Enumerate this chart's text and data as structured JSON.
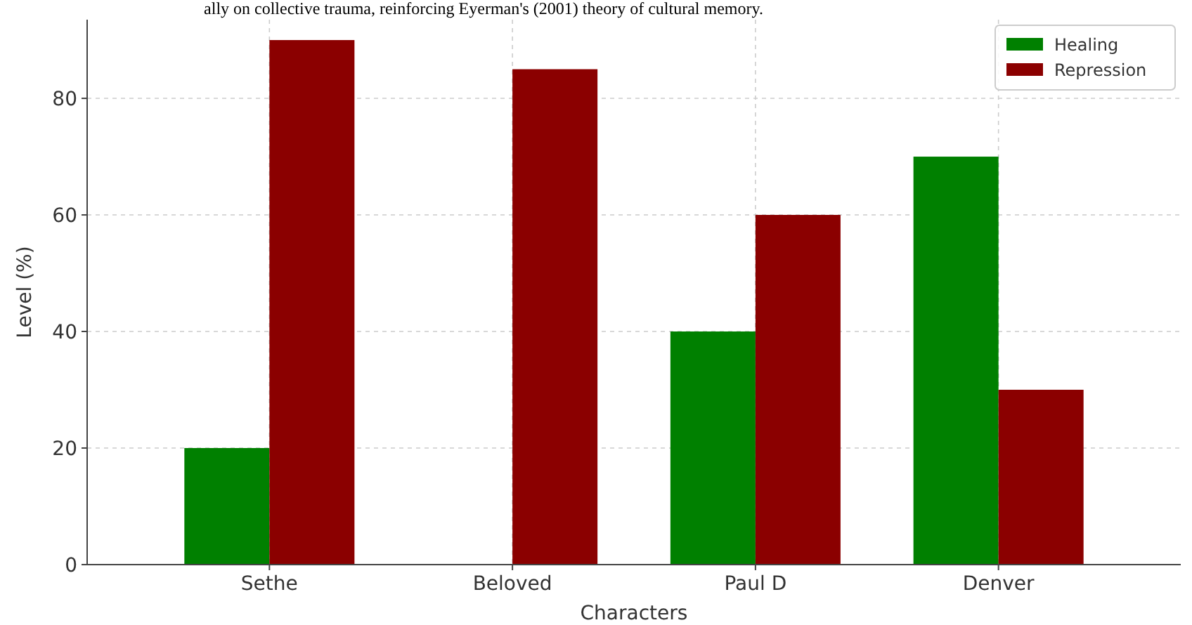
{
  "chart_data": {
    "type": "bar",
    "xlabel": "Characters",
    "ylabel": "Level (%)",
    "annotations": [
      "ally on collective trauma, reinforcing Eyerman's (2001) theory of cultural memory."
    ],
    "categories": [
      "Sethe",
      "Beloved",
      "Paul D",
      "Denver"
    ],
    "series": [
      {
        "name": "Healing",
        "color": "#008000",
        "values": [
          20,
          0,
          40,
          70
        ]
      },
      {
        "name": "Repression",
        "color": "#8b0000",
        "values": [
          90,
          85,
          60,
          30
        ]
      }
    ],
    "ylim": [
      0,
      93.5
    ],
    "yticks": [
      0,
      20,
      40,
      60,
      80
    ],
    "grid": true,
    "legend": "top right"
  }
}
